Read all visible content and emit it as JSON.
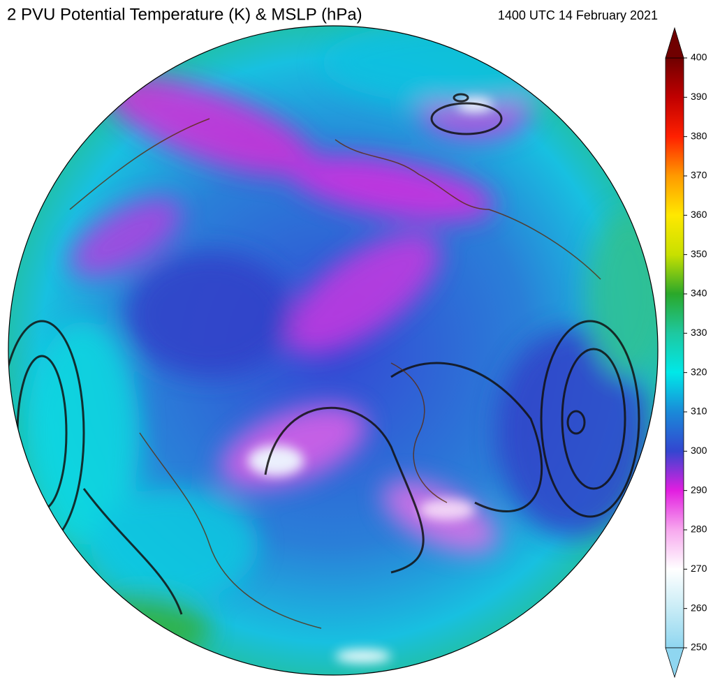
{
  "title": "2 PVU Potential Temperature (K) & MSLP (hPa)",
  "timestamp": "1400 UTC 14 February 2021",
  "colorbar": {
    "lim": [
      250,
      400
    ],
    "ticks": [
      250,
      260,
      270,
      280,
      290,
      300,
      310,
      320,
      330,
      340,
      350,
      360,
      370,
      380,
      390,
      400
    ],
    "colors": [
      "#8fd6f0",
      "#c8ecf6",
      "#ffffff",
      "#f7a8ee",
      "#e21ee0",
      "#3346d0",
      "#1a8ad8",
      "#00e8e8",
      "#1ec8a0",
      "#2aa82a",
      "#c8e000",
      "#ffe800",
      "#ff9a00",
      "#ff2000",
      "#c00000",
      "#700000"
    ]
  }
}
